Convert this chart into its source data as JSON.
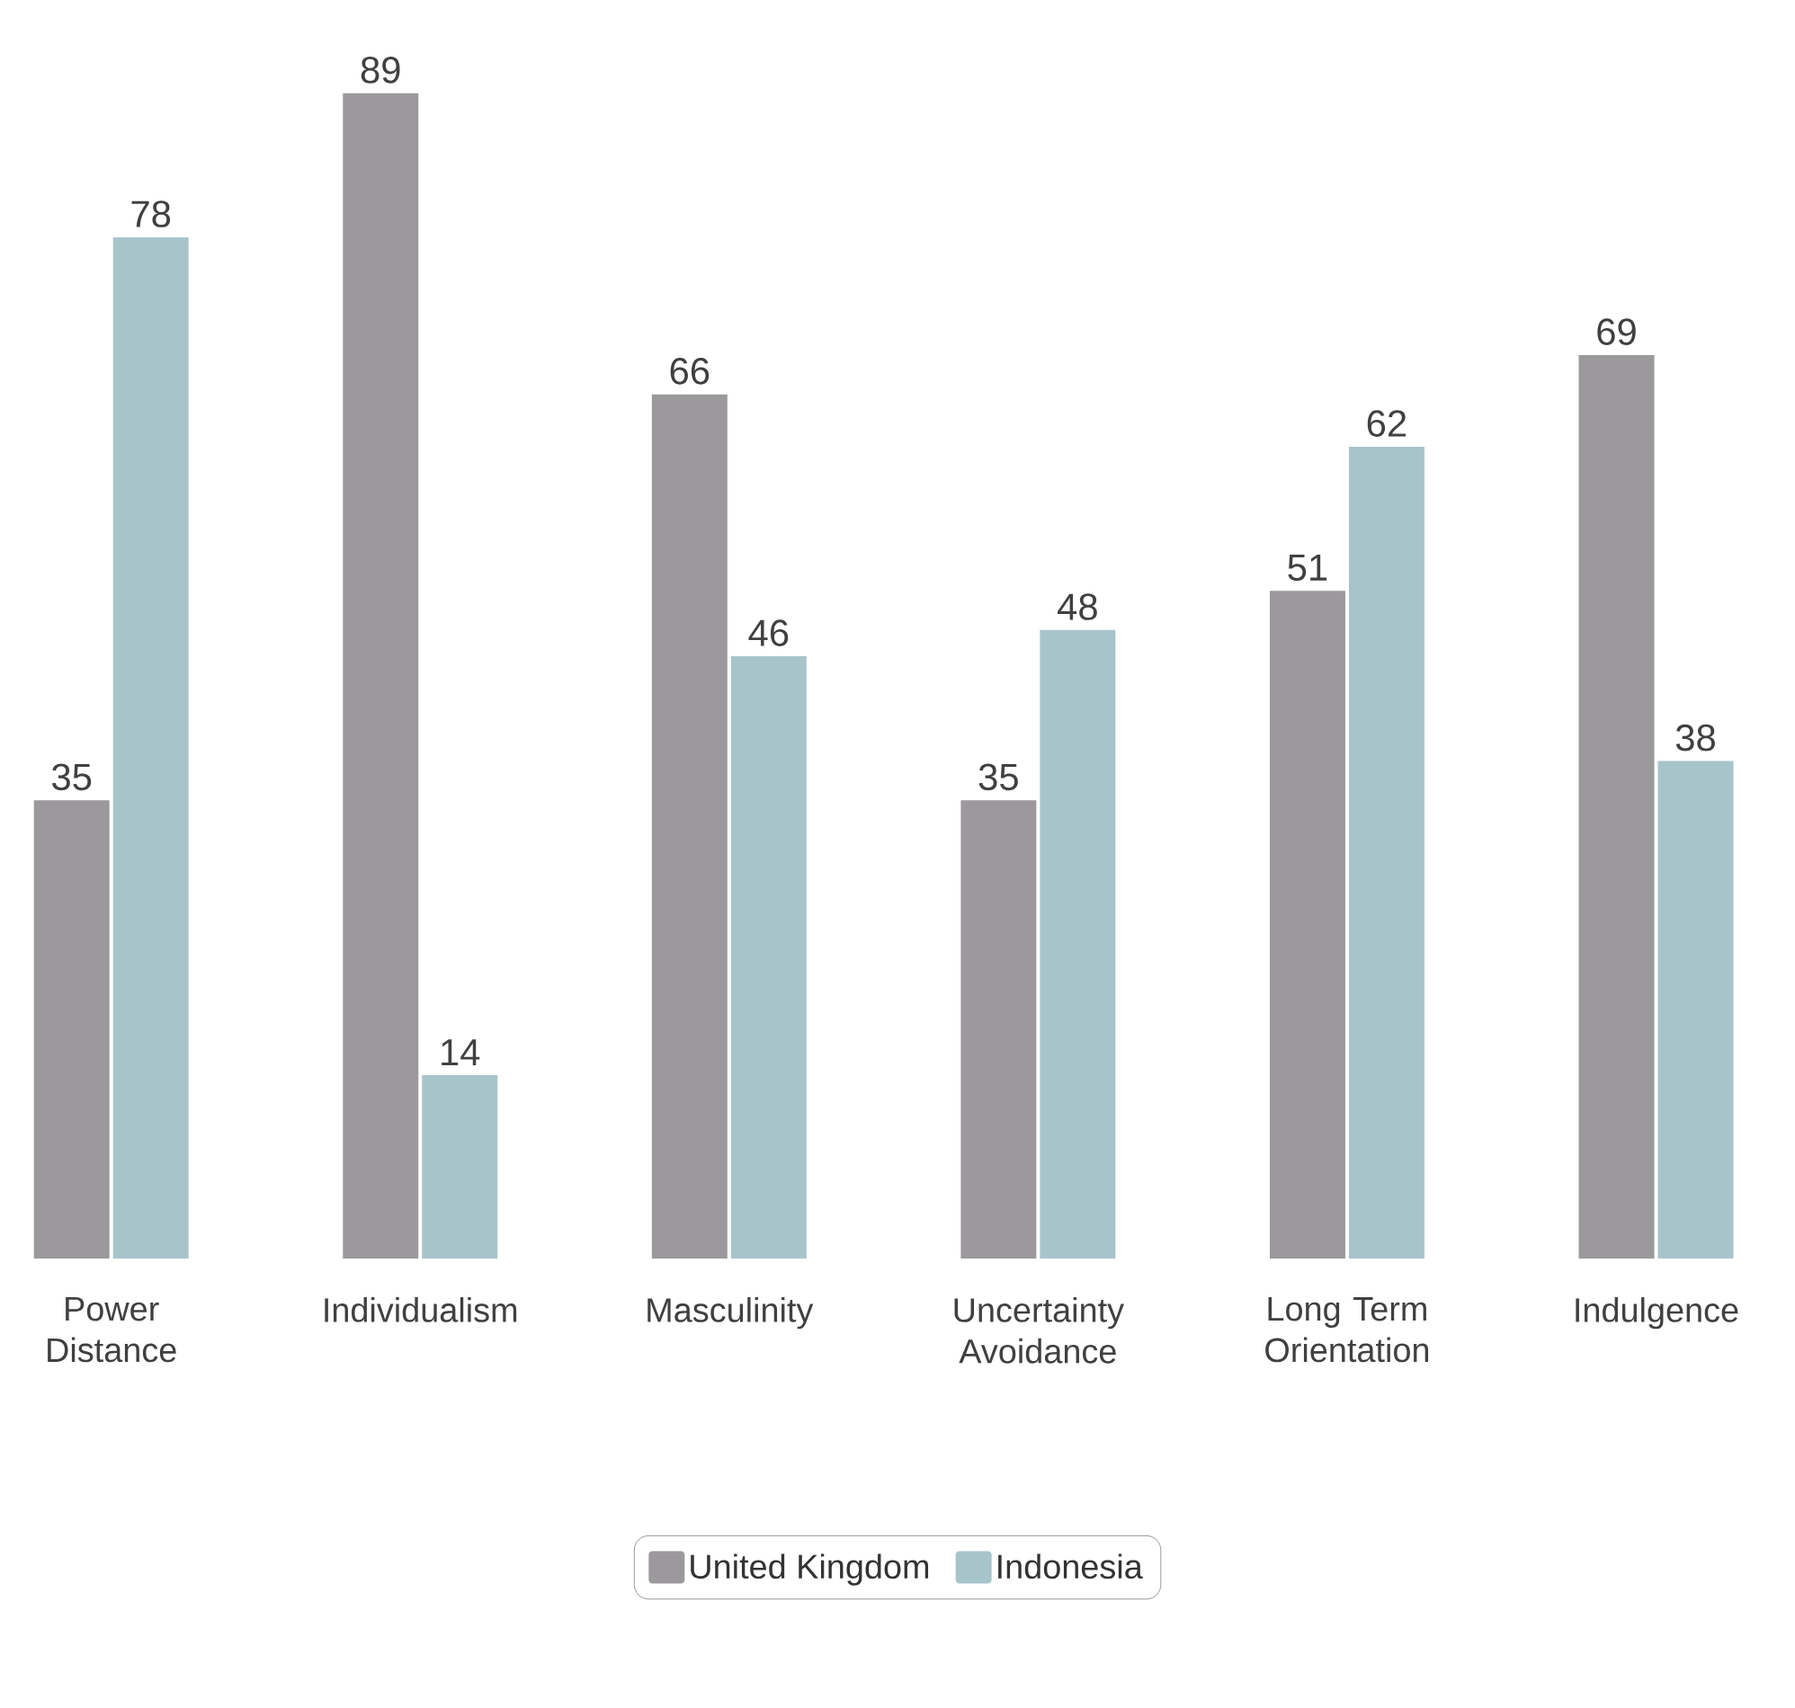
{
  "chart_data": {
    "type": "bar",
    "categories": [
      "Power Distance",
      "Individualism",
      "Masculinity",
      "Uncertainty Avoidance",
      "Long Term Orientation",
      "Indulgence"
    ],
    "series": [
      {
        "name": "United Kingdom",
        "color": "#9b999b",
        "values": [
          35,
          89,
          66,
          35,
          51,
          69
        ]
      },
      {
        "name": "Indonesia",
        "color": "#a8c4cb",
        "values": [
          78,
          14,
          46,
          48,
          62,
          38
        ]
      }
    ],
    "data_labels": true,
    "legend": "bottom",
    "tick_labels": "x"
  }
}
